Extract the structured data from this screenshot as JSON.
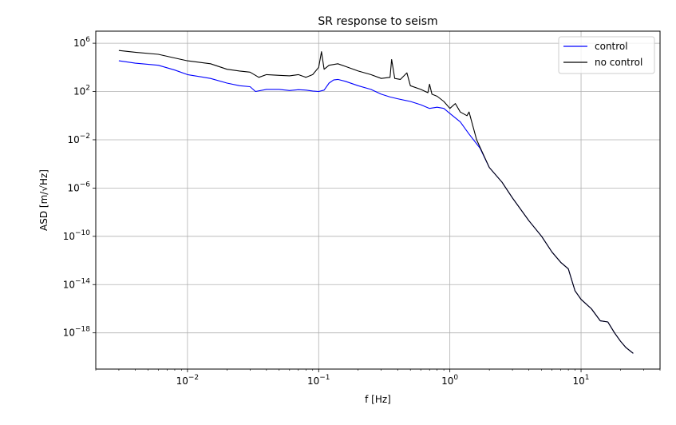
{
  "chart_data": {
    "type": "line",
    "title": "SR response to seism",
    "xlabel": "f [Hz]",
    "ylabel": "ASD [m/√Hz]",
    "xscale": "log",
    "yscale": "log",
    "xlim": [
      0.002,
      40
    ],
    "ylim": [
      1e-21,
      10000000.0
    ],
    "grid": true,
    "legend_position": "top-right",
    "x_ticks": [
      {
        "value": 0.01,
        "mantissa": "10",
        "exp": "−2"
      },
      {
        "value": 0.1,
        "mantissa": "10",
        "exp": "−1"
      },
      {
        "value": 1,
        "mantissa": "10",
        "exp": "0"
      },
      {
        "value": 10,
        "mantissa": "10",
        "exp": "1"
      }
    ],
    "y_ticks": [
      {
        "value": 1000000.0,
        "mantissa": "10",
        "exp": "6"
      },
      {
        "value": 100.0,
        "mantissa": "10",
        "exp": "2"
      },
      {
        "value": 0.01,
        "mantissa": "10",
        "exp": "−2"
      },
      {
        "value": 1e-06,
        "mantissa": "10",
        "exp": "−6"
      },
      {
        "value": 1e-10,
        "mantissa": "10",
        "exp": "−10"
      },
      {
        "value": 1e-14,
        "mantissa": "10",
        "exp": "−14"
      },
      {
        "value": 1e-18,
        "mantissa": "10",
        "exp": "−18"
      }
    ],
    "series": [
      {
        "name": "control",
        "color": "#0000ff",
        "points": [
          [
            0.003,
            35000
          ],
          [
            0.004,
            22000
          ],
          [
            0.006,
            15000
          ],
          [
            0.008,
            6000
          ],
          [
            0.01,
            2500
          ],
          [
            0.015,
            1200
          ],
          [
            0.02,
            500
          ],
          [
            0.025,
            300
          ],
          [
            0.03,
            250
          ],
          [
            0.033,
            100
          ],
          [
            0.04,
            150
          ],
          [
            0.05,
            150
          ],
          [
            0.06,
            120
          ],
          [
            0.07,
            140
          ],
          [
            0.08,
            130
          ],
          [
            0.09,
            110
          ],
          [
            0.1,
            100
          ],
          [
            0.11,
            130
          ],
          [
            0.12,
            500
          ],
          [
            0.13,
            900
          ],
          [
            0.14,
            1000
          ],
          [
            0.16,
            700
          ],
          [
            0.2,
            300
          ],
          [
            0.25,
            150
          ],
          [
            0.3,
            60
          ],
          [
            0.35,
            35
          ],
          [
            0.4,
            25
          ],
          [
            0.5,
            15
          ],
          [
            0.6,
            8
          ],
          [
            0.7,
            4
          ],
          [
            0.8,
            5
          ],
          [
            0.9,
            4
          ],
          [
            1.0,
            1.5
          ],
          [
            1.2,
            0.3
          ],
          [
            1.4,
            0.03
          ],
          [
            1.7,
            0.002
          ],
          [
            2.0,
            5e-05
          ],
          [
            2.5,
            3e-06
          ],
          [
            3.0,
            1.5e-07
          ],
          [
            4.0,
            2e-09
          ],
          [
            5.0,
            1e-10
          ],
          [
            6.0,
            5e-12
          ],
          [
            7.0,
            7e-13
          ],
          [
            8.0,
            2e-13
          ],
          [
            9.0,
            3e-15
          ],
          [
            10.0,
            6e-16
          ],
          [
            12.0,
            1e-16
          ],
          [
            14.0,
            1e-17
          ],
          [
            16.0,
            8e-18
          ],
          [
            18.0,
            1e-18
          ],
          [
            20.0,
            2e-19
          ],
          [
            22.0,
            6e-20
          ],
          [
            25.0,
            2e-20
          ]
        ]
      },
      {
        "name": "no control",
        "color": "#000000",
        "points": [
          [
            0.003,
            250000
          ],
          [
            0.004,
            180000
          ],
          [
            0.006,
            120000
          ],
          [
            0.008,
            60000
          ],
          [
            0.01,
            35000
          ],
          [
            0.015,
            20000
          ],
          [
            0.02,
            7000
          ],
          [
            0.025,
            5000
          ],
          [
            0.03,
            4000
          ],
          [
            0.035,
            1500
          ],
          [
            0.04,
            2500
          ],
          [
            0.05,
            2200
          ],
          [
            0.06,
            2000
          ],
          [
            0.07,
            2500
          ],
          [
            0.08,
            1500
          ],
          [
            0.09,
            2500
          ],
          [
            0.1,
            10000
          ],
          [
            0.105,
            200000
          ],
          [
            0.11,
            7000
          ],
          [
            0.12,
            15000
          ],
          [
            0.14,
            20000
          ],
          [
            0.16,
            12000
          ],
          [
            0.2,
            5000
          ],
          [
            0.25,
            2500
          ],
          [
            0.3,
            1200
          ],
          [
            0.35,
            1500
          ],
          [
            0.36,
            45000
          ],
          [
            0.38,
            1200
          ],
          [
            0.42,
            1000
          ],
          [
            0.47,
            3500
          ],
          [
            0.5,
            300
          ],
          [
            0.6,
            150
          ],
          [
            0.68,
            80
          ],
          [
            0.7,
            400
          ],
          [
            0.73,
            60
          ],
          [
            0.8,
            40
          ],
          [
            0.9,
            15
          ],
          [
            1.0,
            4
          ],
          [
            1.1,
            10
          ],
          [
            1.2,
            2
          ],
          [
            1.35,
            1
          ],
          [
            1.4,
            2
          ],
          [
            1.6,
            0.01
          ],
          [
            2.0,
            5e-05
          ],
          [
            2.5,
            3e-06
          ],
          [
            3.0,
            1.5e-07
          ],
          [
            4.0,
            2e-09
          ],
          [
            5.0,
            1e-10
          ],
          [
            6.0,
            5e-12
          ],
          [
            7.0,
            7e-13
          ],
          [
            8.0,
            2e-13
          ],
          [
            9.0,
            3e-15
          ],
          [
            10.0,
            6e-16
          ],
          [
            12.0,
            1e-16
          ],
          [
            14.0,
            1e-17
          ],
          [
            16.0,
            8e-18
          ],
          [
            18.0,
            1e-18
          ],
          [
            20.0,
            2e-19
          ],
          [
            22.0,
            6e-20
          ],
          [
            25.0,
            2e-20
          ]
        ]
      }
    ]
  }
}
